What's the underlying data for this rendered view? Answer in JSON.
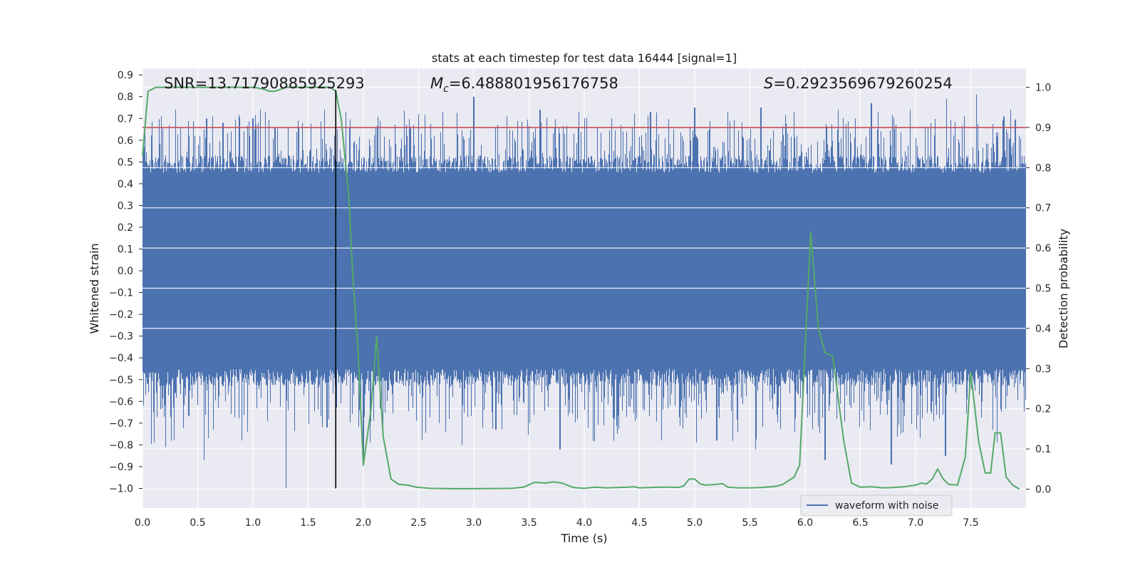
{
  "chart_data": {
    "type": "line",
    "title": "stats at each timestep for test data 16444 [signal=1]",
    "xlabel": "Time (s)",
    "ylabel": "Whitened strain",
    "y2label": "Detection probability",
    "xlim": [
      0.0,
      8.0
    ],
    "ylim": [
      -1.09,
      0.93
    ],
    "y2lim": [
      -0.047,
      1.047
    ],
    "xticks": [
      "0.0",
      "0.5",
      "1.0",
      "1.5",
      "2.0",
      "2.5",
      "3.0",
      "3.5",
      "4.0",
      "4.5",
      "5.0",
      "5.5",
      "6.0",
      "6.5",
      "7.0",
      "7.5"
    ],
    "yticks": [
      "0.9",
      "0.8",
      "0.7",
      "0.6",
      "0.5",
      "0.4",
      "0.3",
      "0.2",
      "0.1",
      "0.0",
      "−0.1",
      "−0.2",
      "−0.3",
      "−0.4",
      "−0.5",
      "−0.6",
      "−0.7",
      "−0.8",
      "−0.9",
      "−1.0"
    ],
    "y2ticks": [
      "1.0",
      "0.9",
      "0.8",
      "0.7",
      "0.6",
      "0.5",
      "0.4",
      "0.3",
      "0.2",
      "0.1",
      "0.0"
    ],
    "annotations": {
      "snr": "SNR=13.71790885925293",
      "mc_symbol": "M",
      "mc_sub": "c",
      "mc_value": "=6.488801956176758",
      "s_symbol": "S",
      "s_value": "=0.2923569679260254"
    },
    "legend": {
      "label": "waveform with noise",
      "location": "lower-right"
    },
    "threshold": {
      "value": 0.9,
      "axis": "right",
      "color": "#c44e52"
    },
    "vertical_marker": {
      "x": 1.75,
      "ymin": -1.0,
      "ymax": 0.83,
      "color": "#000000"
    },
    "waveform": {
      "name": "waveform with noise",
      "color": "#4c72b0",
      "x_range": [
        0.0,
        8.0
      ],
      "core_range": [
        -0.45,
        0.45
      ],
      "max_peak": 0.81,
      "min_trough": -1.0,
      "peaks": [
        [
          0.05,
          0.48
        ],
        [
          0.17,
          0.71
        ],
        [
          0.3,
          0.74
        ],
        [
          0.58,
          0.7
        ],
        [
          0.73,
          0.68
        ],
        [
          1.0,
          0.7
        ],
        [
          1.2,
          0.66
        ],
        [
          1.45,
          0.68
        ],
        [
          1.65,
          0.74
        ],
        [
          1.84,
          0.73
        ],
        [
          2.15,
          0.69
        ],
        [
          2.5,
          0.72
        ],
        [
          2.72,
          0.73
        ],
        [
          3.0,
          0.8
        ],
        [
          3.3,
          0.71
        ],
        [
          3.6,
          0.74
        ],
        [
          3.95,
          0.73
        ],
        [
          4.25,
          0.7
        ],
        [
          4.6,
          0.73
        ],
        [
          5.0,
          0.75
        ],
        [
          5.3,
          0.73
        ],
        [
          5.6,
          0.75
        ],
        [
          5.9,
          0.73
        ],
        [
          6.3,
          0.74
        ],
        [
          6.6,
          0.77
        ],
        [
          6.95,
          0.74
        ],
        [
          7.28,
          0.79
        ],
        [
          7.55,
          0.81
        ],
        [
          7.8,
          0.71
        ]
      ],
      "troughs": [
        [
          0.1,
          -0.65
        ],
        [
          0.21,
          -0.81
        ],
        [
          0.56,
          -0.87
        ],
        [
          0.9,
          -0.78
        ],
        [
          1.3,
          -1.0
        ],
        [
          1.67,
          -0.72
        ],
        [
          2.0,
          -0.88
        ],
        [
          2.45,
          -0.63
        ],
        [
          3.2,
          -0.73
        ],
        [
          3.78,
          -0.82
        ],
        [
          4.3,
          -0.75
        ],
        [
          4.7,
          -0.78
        ],
        [
          5.2,
          -0.78
        ],
        [
          5.55,
          -0.82
        ],
        [
          6.18,
          -0.87
        ],
        [
          6.78,
          -0.89
        ],
        [
          7.27,
          -0.85
        ],
        [
          7.7,
          -0.73
        ]
      ]
    },
    "detection_probability": {
      "name": "detection probability",
      "color": "#55a868",
      "x": [
        0.0,
        0.05,
        0.12,
        0.25,
        0.4,
        0.6,
        0.8,
        1.0,
        1.05,
        1.1,
        1.15,
        1.2,
        1.25,
        1.3,
        1.45,
        1.6,
        1.7,
        1.75,
        1.8,
        1.87,
        1.9,
        1.95,
        2.0,
        2.07,
        2.12,
        2.18,
        2.25,
        2.32,
        2.4,
        2.48,
        2.6,
        2.8,
        3.0,
        3.2,
        3.35,
        3.45,
        3.55,
        3.65,
        3.72,
        3.8,
        3.9,
        4.0,
        4.1,
        4.15,
        4.2,
        4.3,
        4.4,
        4.45,
        4.5,
        4.6,
        4.7,
        4.8,
        4.85,
        4.9,
        4.95,
        5.0,
        5.05,
        5.1,
        5.2,
        5.25,
        5.3,
        5.4,
        5.5,
        5.6,
        5.7,
        5.75,
        5.8,
        5.9,
        5.95,
        6.0,
        6.05,
        6.12,
        6.18,
        6.25,
        6.35,
        6.42,
        6.5,
        6.6,
        6.7,
        6.8,
        6.9,
        7.0,
        7.05,
        7.1,
        7.15,
        7.2,
        7.25,
        7.3,
        7.38,
        7.45,
        7.5,
        7.57,
        7.63,
        7.68,
        7.72,
        7.77,
        7.82,
        7.88,
        7.94
      ],
      "y": [
        0.83,
        0.99,
        1.0,
        1.0,
        1.0,
        1.0,
        1.0,
        1.0,
        0.998,
        0.995,
        0.99,
        0.99,
        0.995,
        1.0,
        1.0,
        1.0,
        1.0,
        0.99,
        0.92,
        0.72,
        0.55,
        0.35,
        0.06,
        0.2,
        0.38,
        0.13,
        0.025,
        0.012,
        0.01,
        0.005,
        0.002,
        0.001,
        0.001,
        0.0015,
        0.002,
        0.005,
        0.017,
        0.015,
        0.018,
        0.015,
        0.004,
        0.002,
        0.005,
        0.004,
        0.003,
        0.004,
        0.005,
        0.006,
        0.003,
        0.004,
        0.005,
        0.005,
        0.004,
        0.008,
        0.025,
        0.025,
        0.013,
        0.01,
        0.012,
        0.014,
        0.005,
        0.003,
        0.003,
        0.004,
        0.006,
        0.008,
        0.012,
        0.03,
        0.06,
        0.35,
        0.64,
        0.4,
        0.34,
        0.33,
        0.12,
        0.015,
        0.005,
        0.006,
        0.003,
        0.004,
        0.006,
        0.01,
        0.015,
        0.013,
        0.025,
        0.05,
        0.025,
        0.012,
        0.01,
        0.08,
        0.29,
        0.12,
        0.04,
        0.04,
        0.14,
        0.14,
        0.03,
        0.01,
        0.0
      ]
    }
  }
}
